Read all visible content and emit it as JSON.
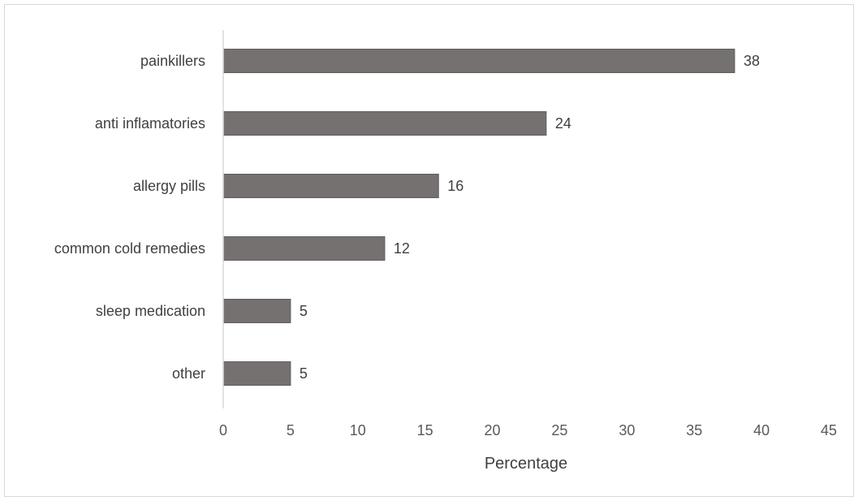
{
  "chart_data": {
    "type": "bar",
    "orientation": "horizontal",
    "title": "",
    "xlabel": "Percentage",
    "ylabel": "",
    "categories": [
      "painkillers",
      "anti inflamatories",
      "allergy pills",
      "common cold remedies",
      "sleep medication",
      "other"
    ],
    "values": [
      38,
      24,
      16,
      12,
      5,
      5
    ],
    "data_labels": [
      "38",
      "24",
      "16",
      "12",
      "5",
      "5"
    ],
    "xlim": [
      0,
      45
    ],
    "x_ticks": [
      0,
      5,
      10,
      15,
      20,
      25,
      30,
      35,
      40,
      45
    ],
    "grid": false,
    "legend": "none",
    "bar_color": "#767171"
  }
}
